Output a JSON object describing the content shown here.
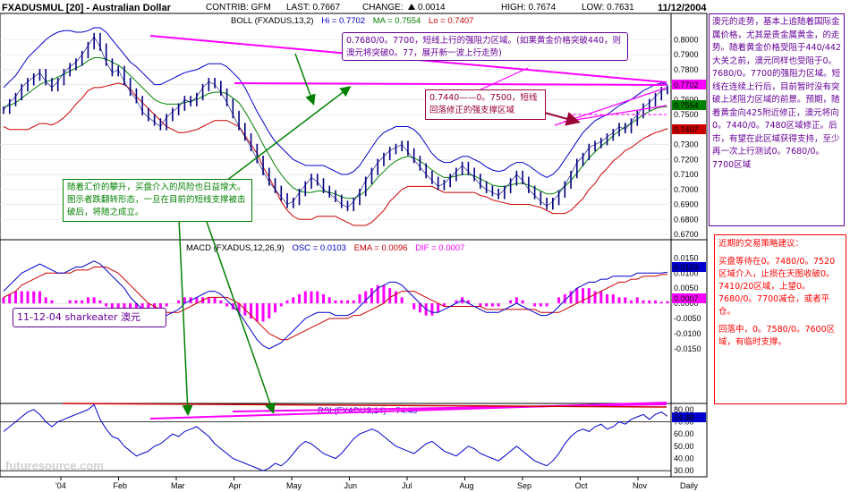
{
  "header": {
    "symbol": "FXADUSMUL [20] - Australian Dollar",
    "contrib": "CONTRIB: GFM",
    "last": "LAST: 0.7667",
    "change_label": "CHANGE:",
    "change_value": "0.0014",
    "high": "HIGH: 0.7674",
    "low": "LOW: 0.7631",
    "date": "11/12/2004"
  },
  "panels": {
    "boll_title": "BOLL (FXADUS,13,2)",
    "boll_hi": "Hi = 0.7702",
    "boll_ma": "MA = 0.7554",
    "boll_lo": "Lo = 0.7407",
    "macd_title": "MACD (FXADUS,12,26,9)",
    "macd_osc": "OSC = 0.0103",
    "macd_ema": "EMA = 0.0096",
    "macd_dif": "DIF = 0.0007",
    "rsi_title": "RSI (FXADUS,14) = 74.48"
  },
  "colors": {
    "hi": "#0000cc",
    "ma": "#008000",
    "lo": "#cc0000",
    "price": "#000080",
    "trend": "#ff00ff",
    "arrow": "#008000",
    "note_border": "#660099",
    "strategy_red": "#ff0000"
  },
  "annotations": {
    "res_zone": "0.7680/0。7700，短线上行的强阻力区域。(如果黄金价格突破440，则澳元将突破0。77，展开新一波上行走势)",
    "support_zone": "0.7440——0。7500，短线回落修正的强支撑区域",
    "breakout_note": "随着汇价的攀升，买盘介入的风险也日益增大。图示者跌翻转形态，一旦在目前的短线支撑被击破后，将随之成立。",
    "author": "11-12-04 sharkeater 澳元",
    "trend_note": "澳元的走势，基本上追随着国际金属价格，尤其是贵金属黄金，的走势。随着黄金价格受阻于440/442大关之前，澳元同样也受阻于0。7680/0。7700的强阻力区域。短线在连续上行后，目前暂时没有突破上述阻力区域的前景。预期，随着黄金向425附近修正，澳元将向0。7440/0。7480区域修正。后市，有望在此区域获得支持，至少再一次上行测试0。7680/0。7700区域",
    "strategy_title": "近期的交易策略建议：",
    "strategy_body": "买盘等待在0。7480/0。7520区域介入，止损在天图收破0。7410/20区域，上望0。7680/0。7700减仓，或者平仓。",
    "strategy_body2": "回落中，0。7580/0。7600区域，有临时支撑。",
    "watermark": "futuresource.com"
  },
  "chart_data": [
    {
      "type": "line",
      "name": "price_bollinger",
      "x_labels": [
        "'04",
        "Feb",
        "Mar",
        "Apr",
        "May",
        "Jun",
        "Jul",
        "Aug",
        "Sep",
        "Oct",
        "Nov",
        "Daily"
      ],
      "y_ticks": [
        "0.8000",
        "0.7900",
        "0.7800",
        "0.7700",
        "0.7600",
        "0.7500",
        "0.7400",
        "0.7300",
        "0.7200",
        "0.7100",
        "0.7000",
        "0.6900",
        "0.6800",
        "0.6700"
      ],
      "ylim": [
        0.67,
        0.805
      ],
      "price": [
        0.753,
        0.758,
        0.762,
        0.768,
        0.772,
        0.775,
        0.778,
        0.772,
        0.768,
        0.772,
        0.778,
        0.782,
        0.785,
        0.79,
        0.796,
        0.802,
        0.795,
        0.785,
        0.778,
        0.78,
        0.772,
        0.765,
        0.76,
        0.752,
        0.748,
        0.745,
        0.742,
        0.748,
        0.752,
        0.755,
        0.76,
        0.758,
        0.762,
        0.768,
        0.772,
        0.77,
        0.765,
        0.758,
        0.75,
        0.742,
        0.735,
        0.728,
        0.72,
        0.712,
        0.705,
        0.7,
        0.695,
        0.69,
        0.692,
        0.698,
        0.703,
        0.708,
        0.705,
        0.7,
        0.697,
        0.694,
        0.69,
        0.688,
        0.692,
        0.698,
        0.706,
        0.712,
        0.718,
        0.722,
        0.726,
        0.728,
        0.73,
        0.725,
        0.72,
        0.715,
        0.71,
        0.706,
        0.702,
        0.704,
        0.708,
        0.712,
        0.716,
        0.712,
        0.708,
        0.703,
        0.7,
        0.698,
        0.696,
        0.7,
        0.705,
        0.71,
        0.706,
        0.7,
        0.696,
        0.692,
        0.689,
        0.692,
        0.697,
        0.703,
        0.71,
        0.718,
        0.722,
        0.728,
        0.73,
        0.732,
        0.735,
        0.738,
        0.742,
        0.74,
        0.745,
        0.75,
        0.755,
        0.758,
        0.762,
        0.766,
        0.767
      ],
      "boll_hi": [
        0.768,
        0.772,
        0.776,
        0.782,
        0.788,
        0.792,
        0.796,
        0.8,
        0.803,
        0.805,
        0.806,
        0.806,
        0.805,
        0.805,
        0.806,
        0.808,
        0.808,
        0.805,
        0.8,
        0.795,
        0.79,
        0.785,
        0.782,
        0.778,
        0.774,
        0.77,
        0.77,
        0.772,
        0.774,
        0.776,
        0.778,
        0.779,
        0.78,
        0.782,
        0.784,
        0.784,
        0.784,
        0.782,
        0.778,
        0.774,
        0.768,
        0.76,
        0.752,
        0.745,
        0.738,
        0.732,
        0.728,
        0.724,
        0.72,
        0.718,
        0.716,
        0.716,
        0.716,
        0.716,
        0.714,
        0.712,
        0.71,
        0.71,
        0.712,
        0.716,
        0.722,
        0.728,
        0.734,
        0.738,
        0.74,
        0.742,
        0.742,
        0.742,
        0.74,
        0.736,
        0.73,
        0.724,
        0.72,
        0.718,
        0.718,
        0.72,
        0.722,
        0.722,
        0.72,
        0.718,
        0.715,
        0.713,
        0.712,
        0.713,
        0.716,
        0.718,
        0.718,
        0.716,
        0.713,
        0.71,
        0.708,
        0.71,
        0.714,
        0.72,
        0.726,
        0.732,
        0.738,
        0.742,
        0.746,
        0.748,
        0.75,
        0.753,
        0.756,
        0.758,
        0.76,
        0.763,
        0.766,
        0.768,
        0.77,
        0.771,
        0.7702
      ],
      "boll_ma": [
        0.755,
        0.756,
        0.758,
        0.761,
        0.764,
        0.767,
        0.77,
        0.772,
        0.773,
        0.775,
        0.777,
        0.779,
        0.781,
        0.783,
        0.786,
        0.788,
        0.788,
        0.787,
        0.785,
        0.783,
        0.78,
        0.776,
        0.772,
        0.768,
        0.764,
        0.76,
        0.758,
        0.757,
        0.757,
        0.757,
        0.758,
        0.759,
        0.76,
        0.762,
        0.764,
        0.765,
        0.765,
        0.764,
        0.761,
        0.758,
        0.752,
        0.745,
        0.738,
        0.73,
        0.723,
        0.716,
        0.71,
        0.705,
        0.701,
        0.699,
        0.698,
        0.698,
        0.699,
        0.699,
        0.698,
        0.697,
        0.695,
        0.694,
        0.694,
        0.696,
        0.699,
        0.703,
        0.708,
        0.712,
        0.716,
        0.719,
        0.721,
        0.722,
        0.721,
        0.719,
        0.716,
        0.713,
        0.71,
        0.708,
        0.708,
        0.709,
        0.71,
        0.71,
        0.709,
        0.707,
        0.705,
        0.703,
        0.702,
        0.702,
        0.703,
        0.704,
        0.704,
        0.703,
        0.701,
        0.699,
        0.697,
        0.697,
        0.699,
        0.702,
        0.706,
        0.711,
        0.716,
        0.721,
        0.725,
        0.729,
        0.732,
        0.736,
        0.739,
        0.742,
        0.744,
        0.747,
        0.75,
        0.752,
        0.754,
        0.755,
        0.7554
      ],
      "boll_lo": [
        0.742,
        0.74,
        0.74,
        0.74,
        0.74,
        0.742,
        0.744,
        0.744,
        0.743,
        0.745,
        0.748,
        0.752,
        0.757,
        0.761,
        0.766,
        0.768,
        0.768,
        0.769,
        0.77,
        0.771,
        0.77,
        0.767,
        0.762,
        0.758,
        0.754,
        0.75,
        0.746,
        0.742,
        0.74,
        0.738,
        0.738,
        0.739,
        0.74,
        0.742,
        0.744,
        0.746,
        0.746,
        0.746,
        0.744,
        0.742,
        0.736,
        0.73,
        0.724,
        0.715,
        0.708,
        0.7,
        0.692,
        0.686,
        0.682,
        0.68,
        0.68,
        0.68,
        0.682,
        0.682,
        0.682,
        0.682,
        0.68,
        0.678,
        0.676,
        0.676,
        0.676,
        0.678,
        0.682,
        0.686,
        0.692,
        0.696,
        0.7,
        0.702,
        0.702,
        0.702,
        0.702,
        0.702,
        0.7,
        0.698,
        0.698,
        0.698,
        0.698,
        0.698,
        0.698,
        0.696,
        0.695,
        0.693,
        0.692,
        0.691,
        0.69,
        0.69,
        0.69,
        0.69,
        0.689,
        0.688,
        0.686,
        0.684,
        0.684,
        0.684,
        0.686,
        0.69,
        0.694,
        0.7,
        0.704,
        0.71,
        0.714,
        0.719,
        0.722,
        0.726,
        0.728,
        0.731,
        0.734,
        0.736,
        0.738,
        0.739,
        0.7407
      ]
    },
    {
      "type": "line",
      "name": "macd",
      "y_ticks": [
        "0.0150",
        "0.0100",
        "0.0050",
        "0.0000",
        "-0.0050",
        "-0.0100",
        "-0.0150"
      ],
      "ylim": [
        -0.018,
        0.016
      ],
      "osc": [
        0.004,
        0.006,
        0.008,
        0.01,
        0.011,
        0.012,
        0.013,
        0.012,
        0.011,
        0.01,
        0.01,
        0.011,
        0.012,
        0.012,
        0.013,
        0.014,
        0.013,
        0.011,
        0.009,
        0.007,
        0.005,
        0.002,
        0.0,
        -0.002,
        -0.004,
        -0.005,
        -0.005,
        -0.004,
        -0.003,
        -0.002,
        0.0,
        0.001,
        0.002,
        0.003,
        0.004,
        0.004,
        0.003,
        0.001,
        -0.001,
        -0.003,
        -0.006,
        -0.009,
        -0.012,
        -0.014,
        -0.015,
        -0.014,
        -0.013,
        -0.011,
        -0.009,
        -0.007,
        -0.005,
        -0.004,
        -0.003,
        -0.003,
        -0.003,
        -0.004,
        -0.004,
        -0.004,
        -0.003,
        -0.001,
        0.001,
        0.003,
        0.005,
        0.006,
        0.007,
        0.007,
        0.006,
        0.004,
        0.002,
        0.0,
        -0.002,
        -0.003,
        -0.003,
        -0.002,
        -0.001,
        0.0,
        0.001,
        0.0,
        -0.001,
        -0.002,
        -0.003,
        -0.003,
        -0.003,
        -0.002,
        -0.001,
        0.0,
        -0.001,
        -0.002,
        -0.003,
        -0.004,
        -0.004,
        -0.003,
        -0.001,
        0.001,
        0.003,
        0.005,
        0.006,
        0.007,
        0.007,
        0.008,
        0.008,
        0.009,
        0.009,
        0.009,
        0.009,
        0.01,
        0.01,
        0.01,
        0.01,
        0.01,
        0.0103
      ],
      "ema": [
        0.002,
        0.003,
        0.004,
        0.006,
        0.007,
        0.008,
        0.009,
        0.01,
        0.01,
        0.01,
        0.01,
        0.01,
        0.011,
        0.011,
        0.011,
        0.012,
        0.012,
        0.012,
        0.011,
        0.01,
        0.008,
        0.006,
        0.004,
        0.002,
        0.0,
        -0.001,
        -0.002,
        -0.003,
        -0.003,
        -0.003,
        -0.002,
        -0.001,
        0.0,
        0.001,
        0.002,
        0.002,
        0.002,
        0.002,
        0.001,
        0.0,
        -0.002,
        -0.004,
        -0.006,
        -0.008,
        -0.01,
        -0.011,
        -0.012,
        -0.012,
        -0.011,
        -0.01,
        -0.009,
        -0.008,
        -0.007,
        -0.006,
        -0.005,
        -0.005,
        -0.005,
        -0.005,
        -0.004,
        -0.004,
        -0.003,
        -0.002,
        -0.001,
        0.0,
        0.002,
        0.003,
        0.004,
        0.004,
        0.004,
        0.003,
        0.002,
        0.001,
        0.0,
        -0.001,
        -0.001,
        -0.001,
        -0.001,
        -0.001,
        -0.001,
        -0.001,
        -0.002,
        -0.002,
        -0.002,
        -0.002,
        -0.002,
        -0.002,
        -0.002,
        -0.002,
        -0.002,
        -0.003,
        -0.003,
        -0.003,
        -0.003,
        -0.002,
        -0.001,
        0.0,
        0.001,
        0.002,
        0.003,
        0.004,
        0.005,
        0.006,
        0.007,
        0.007,
        0.008,
        0.008,
        0.009,
        0.009,
        0.009,
        0.0095,
        0.0096
      ],
      "dif": [
        0.002,
        0.003,
        0.004,
        0.004,
        0.004,
        0.004,
        0.004,
        0.002,
        0.001,
        0.0,
        0.0,
        0.001,
        0.001,
        0.001,
        0.002,
        0.002,
        0.001,
        -0.001,
        -0.002,
        -0.003,
        -0.003,
        -0.004,
        -0.004,
        -0.004,
        -0.004,
        -0.004,
        -0.003,
        -0.001,
        0.0,
        0.001,
        0.002,
        0.002,
        0.002,
        0.002,
        0.002,
        0.002,
        0.001,
        -0.001,
        -0.002,
        -0.003,
        -0.004,
        -0.005,
        -0.006,
        -0.006,
        -0.005,
        -0.003,
        -0.001,
        0.001,
        0.002,
        0.003,
        0.004,
        0.004,
        0.004,
        0.003,
        0.002,
        0.001,
        0.001,
        0.001,
        0.001,
        0.003,
        0.004,
        0.005,
        0.006,
        0.006,
        0.005,
        0.004,
        0.002,
        0.0,
        -0.002,
        -0.003,
        -0.004,
        -0.004,
        -0.003,
        -0.001,
        0.0,
        0.001,
        0.002,
        0.001,
        0.0,
        -0.001,
        -0.001,
        -0.001,
        -0.001,
        0.0,
        0.001,
        0.002,
        0.001,
        0.0,
        -0.001,
        -0.001,
        -0.001,
        0.0,
        0.002,
        0.003,
        0.004,
        0.005,
        0.005,
        0.005,
        0.004,
        0.004,
        0.003,
        0.003,
        0.002,
        0.002,
        0.001,
        0.002,
        0.001,
        0.001,
        0.001,
        0.0005,
        0.0007
      ]
    },
    {
      "type": "line",
      "name": "rsi",
      "y_ticks": [
        "80.00",
        "70.00",
        "60.00",
        "50.00",
        "40.00",
        "30.00"
      ],
      "ylim": [
        25,
        85
      ],
      "values": [
        62,
        66,
        70,
        74,
        78,
        80,
        76,
        70,
        66,
        70,
        72,
        74,
        76,
        78,
        80,
        84,
        72,
        64,
        58,
        56,
        50,
        46,
        42,
        44,
        46,
        50,
        52,
        56,
        60,
        58,
        62,
        64,
        66,
        62,
        58,
        52,
        48,
        44,
        40,
        38,
        36,
        34,
        32,
        30,
        32,
        36,
        34,
        38,
        44,
        50,
        54,
        52,
        48,
        44,
        42,
        40,
        44,
        50,
        56,
        60,
        62,
        64,
        62,
        58,
        54,
        50,
        48,
        46,
        44,
        48,
        52,
        54,
        50,
        46,
        44,
        42,
        46,
        50,
        48,
        44,
        42,
        40,
        38,
        42,
        46,
        50,
        46,
        42,
        38,
        36,
        34,
        38,
        44,
        52,
        58,
        62,
        64,
        62,
        66,
        68,
        64,
        66,
        70,
        68,
        72,
        74,
        76,
        72,
        76,
        78,
        74.48
      ]
    }
  ]
}
